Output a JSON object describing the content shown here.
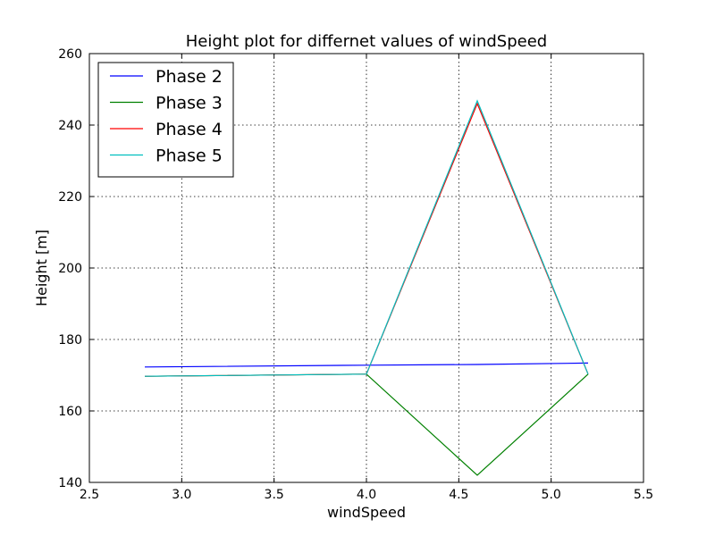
{
  "chart_data": {
    "type": "line",
    "title": "Height plot for differnet values of windSpeed",
    "xlabel": "windSpeed",
    "ylabel": "Height [m]",
    "xlim": [
      2.5,
      5.5
    ],
    "ylim": [
      140,
      260
    ],
    "xticks": [
      2.5,
      3.0,
      3.5,
      4.0,
      4.5,
      5.0,
      5.5
    ],
    "xtick_labels": [
      "2.5",
      "3.0",
      "3.5",
      "4.0",
      "4.5",
      "5.0",
      "5.5"
    ],
    "yticks": [
      140,
      160,
      180,
      200,
      220,
      240,
      260
    ],
    "ytick_labels": [
      "140",
      "160",
      "180",
      "200",
      "220",
      "240",
      "260"
    ],
    "grid": true,
    "legend_position": "top-left",
    "series": [
      {
        "name": "Phase 2",
        "color": "#0000ff",
        "x": [
          2.8,
          4.0,
          4.6,
          5.2
        ],
        "y": [
          172.3,
          172.8,
          173.0,
          173.4
        ]
      },
      {
        "name": "Phase 3",
        "color": "#008000",
        "x": [
          2.8,
          4.0,
          4.6,
          5.2
        ],
        "y": [
          169.7,
          170.3,
          142.0,
          170.3
        ]
      },
      {
        "name": "Phase 4",
        "color": "#ff0000",
        "x": [
          2.8,
          4.0,
          4.6,
          5.2
        ],
        "y": [
          169.7,
          170.3,
          246.0,
          170.3
        ]
      },
      {
        "name": "Phase 5",
        "color": "#00bfbf",
        "x": [
          2.8,
          4.0,
          4.6,
          5.2
        ],
        "y": [
          169.7,
          170.3,
          246.8,
          170.3
        ]
      }
    ]
  }
}
